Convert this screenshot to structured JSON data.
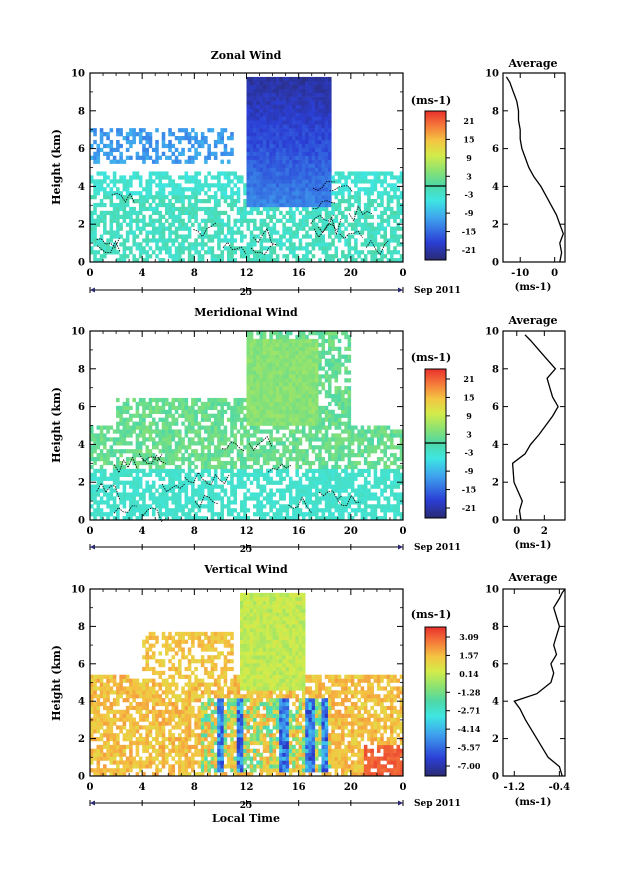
{
  "figure": {
    "date_label": "Sep 2011",
    "day_label": "25",
    "x_label": "Local Time"
  },
  "chart_data": [
    {
      "type": "heatmap",
      "title": "Zonal Wind",
      "ylabel": "Height (km)",
      "xlabel": "",
      "x_ticks": [
        "0",
        "4",
        "8",
        "12",
        "16",
        "20",
        "0"
      ],
      "y_ticks": [
        "0",
        "2",
        "4",
        "6",
        "8",
        "10"
      ],
      "xlim": [
        0,
        24
      ],
      "ylim": [
        0,
        10
      ],
      "colorbar": {
        "unit": "(ms-1)",
        "tick_labels": [
          "21",
          "15",
          "9",
          "3",
          "-3",
          "-9",
          "-15",
          "-21"
        ],
        "range": [
          -24,
          24
        ],
        "zero_line": true
      },
      "average_profile": {
        "title": "Average",
        "xlabel": "(ms-1)",
        "x_ticks": [
          "-10",
          "0"
        ],
        "xlim": [
          -15,
          3
        ],
        "y_ticks": [
          "0",
          "2",
          "4",
          "6",
          "8",
          "10"
        ],
        "ylim": [
          0,
          10
        ],
        "x": [
          1.5,
          2,
          1.5,
          2.5,
          1.5,
          0.5,
          -1,
          -2.5,
          -4,
          -6,
          -7.5,
          -8.5,
          -9.5,
          -10,
          -10,
          -10.5,
          -10.5,
          -11,
          -12,
          -13,
          -14
        ],
        "y": [
          0,
          0.5,
          1,
          1.5,
          2,
          2.5,
          3,
          3.5,
          4,
          4.5,
          5,
          5.5,
          6,
          6.5,
          7,
          7.5,
          8,
          8.5,
          9,
          9.5,
          9.8
        ]
      }
    },
    {
      "type": "heatmap",
      "title": "Meridional Wind",
      "ylabel": "Height (km)",
      "xlabel": "",
      "x_ticks": [
        "0",
        "4",
        "8",
        "12",
        "16",
        "20",
        "0"
      ],
      "y_ticks": [
        "0",
        "2",
        "4",
        "6",
        "8",
        "10"
      ],
      "xlim": [
        0,
        24
      ],
      "ylim": [
        0,
        10
      ],
      "colorbar": {
        "unit": "(ms-1)",
        "tick_labels": [
          "21",
          "15",
          "9",
          "3",
          "-3",
          "-9",
          "-15",
          "-21"
        ],
        "range": [
          -24,
          24
        ],
        "zero_line": true
      },
      "average_profile": {
        "title": "Average",
        "xlabel": "(ms-1)",
        "x_ticks": [
          "0",
          "2"
        ],
        "xlim": [
          -1,
          3.5
        ],
        "y_ticks": [
          "0",
          "2",
          "4",
          "6",
          "8",
          "10"
        ],
        "ylim": [
          0,
          10
        ],
        "x": [
          0.3,
          0.2,
          0.4,
          -0.2,
          -0.3,
          0.6,
          1.0,
          1.6,
          2.1,
          2.6,
          3.0,
          2.6,
          2.4,
          2.2,
          2.8,
          2.2,
          1.6,
          1.0,
          0.6
        ],
        "y": [
          0,
          0.5,
          1,
          2,
          3,
          3.5,
          4,
          4.5,
          5,
          5.5,
          6,
          6.5,
          7,
          7.5,
          8,
          8.5,
          9,
          9.5,
          9.8
        ]
      }
    },
    {
      "type": "heatmap",
      "title": "Vertical Wind",
      "ylabel": "Height (km)",
      "xlabel": "Local Time",
      "x_ticks": [
        "0",
        "4",
        "8",
        "12",
        "16",
        "20",
        "0"
      ],
      "y_ticks": [
        "0",
        "2",
        "4",
        "6",
        "8",
        "10"
      ],
      "xlim": [
        0,
        24
      ],
      "ylim": [
        0,
        10
      ],
      "colorbar": {
        "unit": "(ms-1)",
        "tick_labels": [
          "3.09",
          "1.57",
          "0.14",
          "-1.28",
          "-2.71",
          "-4.14",
          "-5.57",
          "-7.00"
        ],
        "range": [
          -7.5,
          3.6
        ],
        "zero_line": false
      },
      "average_profile": {
        "title": "Average",
        "xlabel": "(ms-1)",
        "x_ticks": [
          "-1.2",
          "-0.4"
        ],
        "xlim": [
          -1.4,
          -0.3
        ],
        "y_ticks": [
          "0",
          "2",
          "4",
          "6",
          "8",
          "10"
        ],
        "ylim": [
          0,
          10
        ],
        "x": [
          -0.35,
          -0.4,
          -0.6,
          -0.8,
          -1.0,
          -1.1,
          -1.2,
          -0.8,
          -0.55,
          -0.5,
          -0.55,
          -0.45,
          -0.5,
          -0.45,
          -0.4,
          -0.45,
          -0.5,
          -0.4,
          -0.35,
          -0.3
        ],
        "y": [
          0,
          0.5,
          1,
          2,
          3,
          3.6,
          4,
          4.4,
          5,
          5.5,
          6,
          6.5,
          7,
          7.5,
          8,
          8.5,
          9,
          9.5,
          9.8,
          10
        ]
      }
    }
  ]
}
